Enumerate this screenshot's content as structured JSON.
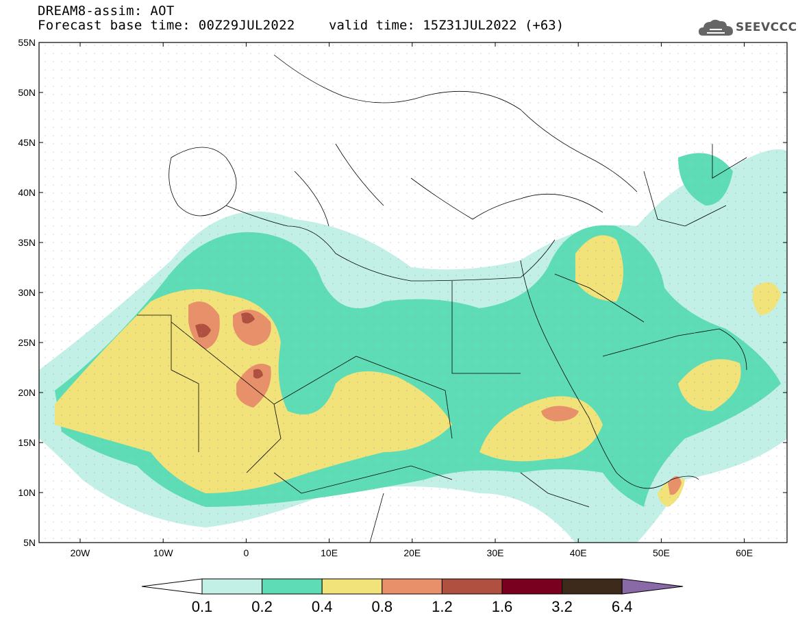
{
  "header": {
    "line1": "DREAM8-assim: AOT",
    "line2": "Forecast base time: 00Z29JUL2022",
    "valid": "valid time: 15Z31JUL2022 (+63)"
  },
  "logo": {
    "text": "SEEVCCC",
    "icon": "cloud-icon"
  },
  "axes": {
    "lat_labels": [
      "55N",
      "50N",
      "45N",
      "40N",
      "35N",
      "30N",
      "25N",
      "20N",
      "15N",
      "10N",
      "5N"
    ],
    "lon_labels": [
      "20W",
      "10W",
      "0",
      "10E",
      "20E",
      "30E",
      "40E",
      "50E",
      "60E"
    ]
  },
  "colorbar": {
    "labels": [
      "0.1",
      "0.2",
      "0.4",
      "0.8",
      "1.2",
      "1.6",
      "3.2",
      "6.4"
    ],
    "colors": [
      "#c2efe6",
      "#5ddcb6",
      "#f1e27a",
      "#e8906a",
      "#b05040",
      "#7a0020",
      "#3e2a1a",
      "#8a6aa6"
    ]
  }
}
